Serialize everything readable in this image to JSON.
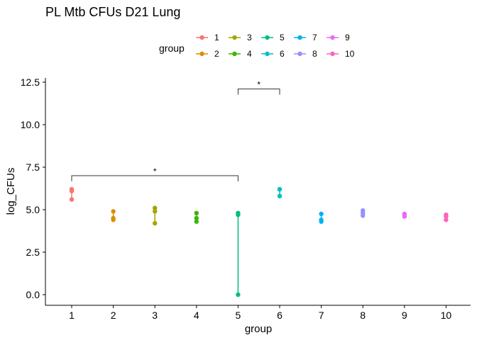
{
  "chart_data": {
    "type": "scatter",
    "title": "PL Mtb CFUs D21 Lung",
    "xlabel": "group",
    "ylabel": "log_CFUs",
    "ylim": [
      -0.5,
      12.6
    ],
    "yticks": [
      0.0,
      2.5,
      5.0,
      7.5,
      10.0,
      12.5
    ],
    "ytick_labels": [
      "0.0",
      "2.5",
      "5.0",
      "7.5",
      "10.0",
      "12.5"
    ],
    "categories": [
      "1",
      "2",
      "3",
      "4",
      "5",
      "6",
      "7",
      "8",
      "9",
      "10"
    ],
    "grid": false,
    "legend": {
      "title": "group",
      "position": "top"
    },
    "series": [
      {
        "name": "1",
        "color": "#F8766D",
        "values": [
          6.2,
          6.1,
          5.6
        ]
      },
      {
        "name": "2",
        "color": "#D89000",
        "values": [
          4.9,
          4.5,
          4.4
        ]
      },
      {
        "name": "3",
        "color": "#A3A500",
        "values": [
          5.1,
          4.9,
          4.2
        ]
      },
      {
        "name": "4",
        "color": "#39B600",
        "values": [
          4.8,
          4.5,
          4.3
        ]
      },
      {
        "name": "5",
        "color": "#00BF7D",
        "values": [
          4.8,
          4.7,
          0.0
        ]
      },
      {
        "name": "6",
        "color": "#00BFC4",
        "values": [
          6.2,
          6.2,
          5.8
        ]
      },
      {
        "name": "7",
        "color": "#00B0F6",
        "values": [
          4.75,
          4.4,
          4.3
        ]
      },
      {
        "name": "8",
        "color": "#9590FF",
        "values": [
          4.95,
          4.8,
          4.65
        ]
      },
      {
        "name": "9",
        "color": "#E76BF3",
        "values": [
          4.75,
          4.7,
          4.6
        ]
      },
      {
        "name": "10",
        "color": "#FF62BC",
        "values": [
          4.7,
          4.6,
          4.4
        ]
      }
    ],
    "annotations": [
      {
        "from": "1",
        "to": "5",
        "y": 7.0,
        "label": "*"
      },
      {
        "from": "5",
        "to": "6",
        "y": 12.1,
        "label": "*"
      }
    ]
  }
}
